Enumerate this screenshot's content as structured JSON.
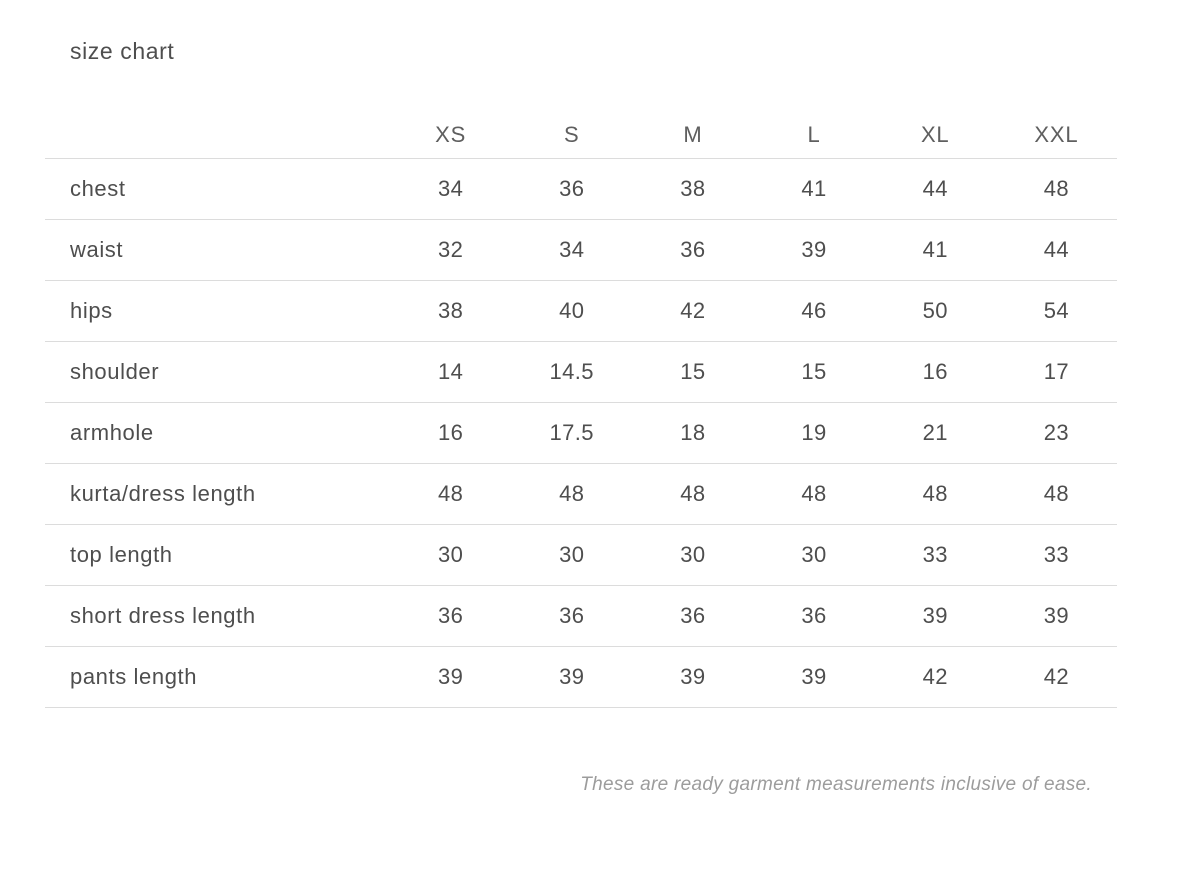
{
  "title": "size chart",
  "footnote": "These are ready garment measurements inclusive of ease.",
  "colors": {
    "background": "#ffffff",
    "text": "#4e4e4e",
    "header_text": "#5f5f5f",
    "divider": "#dcdcdc",
    "footnote_text": "#9c9c9c"
  },
  "chart_data": {
    "type": "table",
    "title": "size chart",
    "columns": [
      "XS",
      "S",
      "M",
      "L",
      "XL",
      "XXL"
    ],
    "row_header": "",
    "rows": [
      {
        "label": "chest",
        "values": [
          "34",
          "36",
          "38",
          "41",
          "44",
          "48"
        ]
      },
      {
        "label": "waist",
        "values": [
          "32",
          "34",
          "36",
          "39",
          "41",
          "44"
        ]
      },
      {
        "label": "hips",
        "values": [
          "38",
          "40",
          "42",
          "46",
          "50",
          "54"
        ]
      },
      {
        "label": "shoulder",
        "values": [
          "14",
          "14.5",
          "15",
          "15",
          "16",
          "17"
        ]
      },
      {
        "label": "armhole",
        "values": [
          "16",
          "17.5",
          "18",
          "19",
          "21",
          "23"
        ]
      },
      {
        "label": "kurta/dress length",
        "values": [
          "48",
          "48",
          "48",
          "48",
          "48",
          "48"
        ]
      },
      {
        "label": "top length",
        "values": [
          "30",
          "30",
          "30",
          "30",
          "33",
          "33"
        ]
      },
      {
        "label": "short dress length",
        "values": [
          "36",
          "36",
          "36",
          "36",
          "39",
          "39"
        ]
      },
      {
        "label": "pants length",
        "values": [
          "39",
          "39",
          "39",
          "39",
          "42",
          "42"
        ]
      }
    ],
    "layout": {
      "grid": "horizontal-row-separators-only",
      "value_alignment": "center",
      "label_alignment": "left",
      "note_position": "bottom-right"
    }
  }
}
